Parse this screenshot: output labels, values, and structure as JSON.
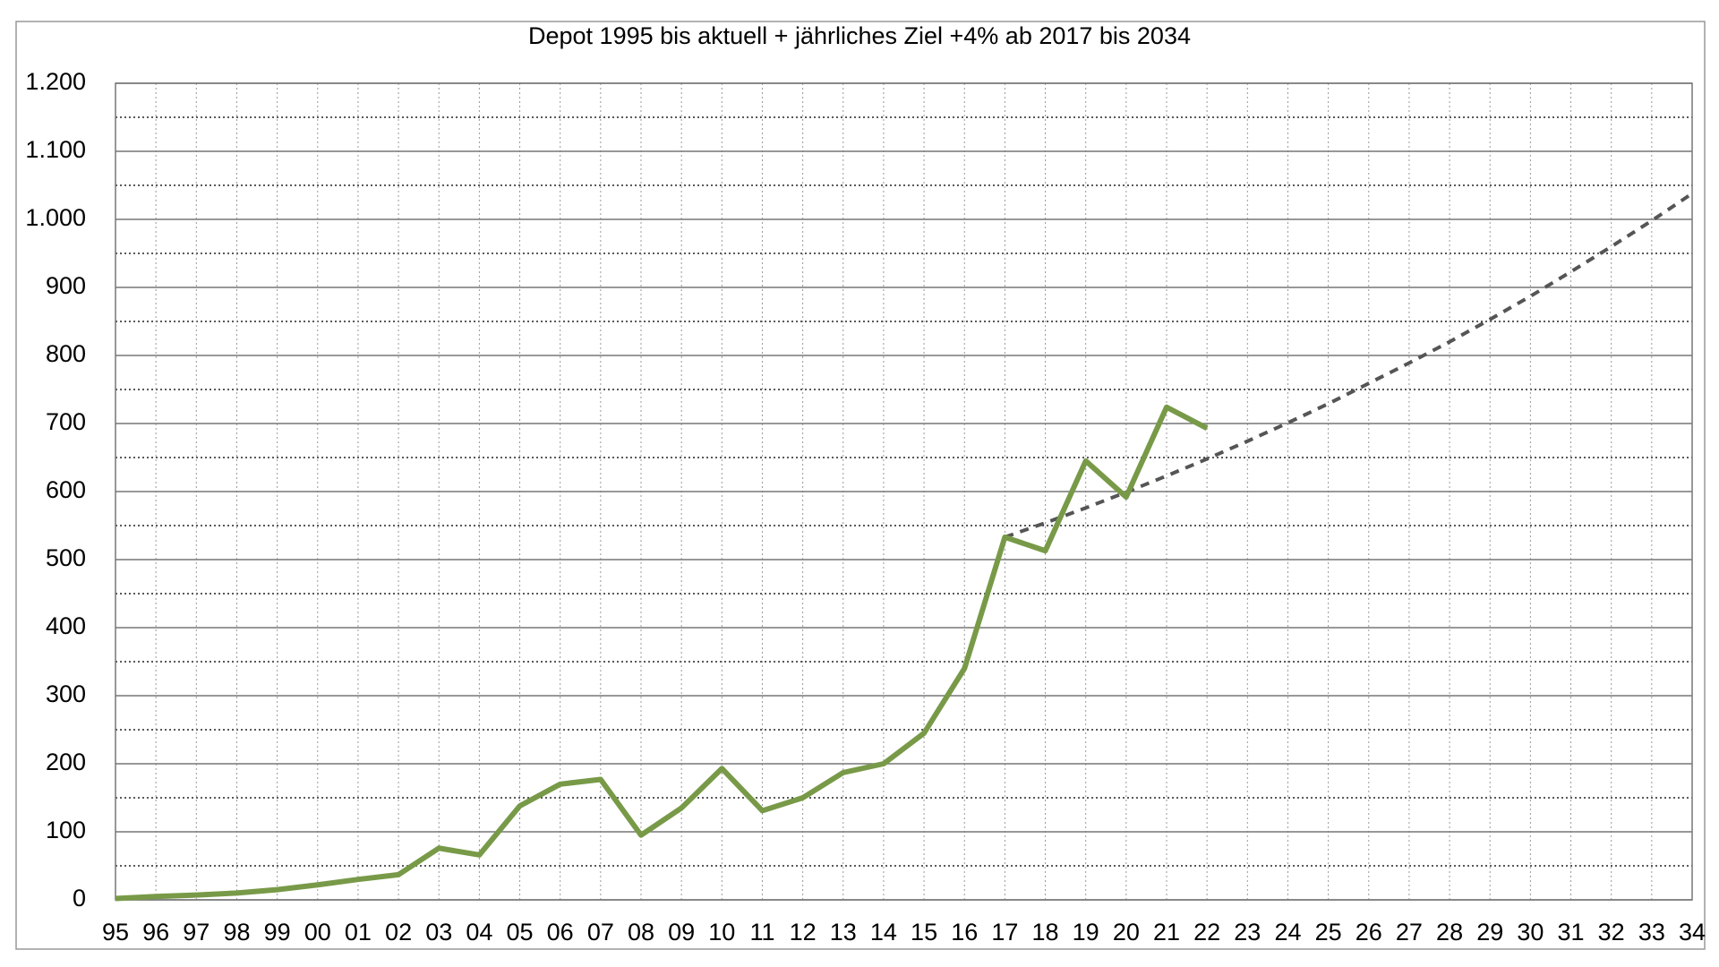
{
  "chart_data": {
    "type": "line",
    "title": "Depot 1995 bis aktuell + jährliches Ziel +4% ab 2017 bis 2034",
    "categories": [
      "95",
      "96",
      "97",
      "98",
      "99",
      "00",
      "01",
      "02",
      "03",
      "04",
      "05",
      "06",
      "07",
      "08",
      "09",
      "10",
      "11",
      "12",
      "13",
      "14",
      "15",
      "16",
      "17",
      "18",
      "19",
      "20",
      "21",
      "22",
      "23",
      "24",
      "25",
      "26",
      "27",
      "28",
      "29",
      "30",
      "31",
      "32",
      "33",
      "34"
    ],
    "series": [
      {
        "color": "#789a48",
        "dashed": false,
        "values": [
          2,
          5,
          7,
          10,
          15,
          22,
          30,
          37,
          76,
          66,
          138,
          170,
          177,
          95,
          135,
          193,
          131,
          150,
          187,
          200,
          245,
          340,
          533,
          513,
          645,
          592,
          724,
          693,
          null,
          null,
          null,
          null,
          null,
          null,
          null,
          null,
          null,
          null,
          null,
          null
        ]
      },
      {
        "color": "#555555",
        "dashed": true,
        "values": [
          null,
          null,
          null,
          null,
          null,
          null,
          null,
          null,
          null,
          null,
          null,
          null,
          null,
          null,
          null,
          null,
          null,
          null,
          null,
          null,
          null,
          null,
          533,
          554,
          576,
          599,
          623,
          648,
          674,
          701,
          729,
          759,
          789,
          820,
          853,
          887,
          923,
          960,
          998,
          1038
        ]
      }
    ],
    "ylim": [
      0,
      1200
    ],
    "yticks": [
      0,
      100,
      200,
      300,
      400,
      500,
      600,
      700,
      800,
      900,
      {
        "value": 1000,
        "label": "1.000"
      },
      {
        "value": 1100,
        "label": "1.100"
      },
      {
        "value": 1200,
        "label": "1.200"
      }
    ],
    "minor_yticks": [
      50,
      150,
      250,
      350,
      450,
      550,
      650,
      750,
      850,
      950,
      1050,
      1150
    ],
    "grid": true
  }
}
